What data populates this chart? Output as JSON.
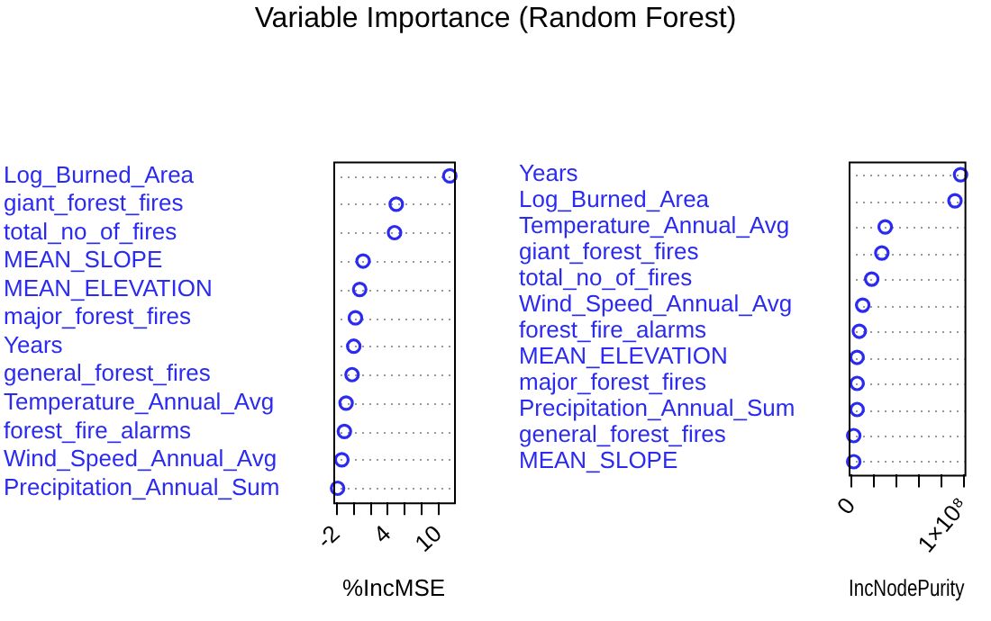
{
  "chart_data": [
    {
      "type": "scatter",
      "title": "Variable Importance (Random Forest)",
      "orientation": "horizontal",
      "xlabel": "%IncMSE",
      "color": "#2a2af0",
      "marker": "circle",
      "grid": "y",
      "legend": false,
      "categories": [
        "Log_Burned_Area",
        "giant_forest_fires",
        "total_no_of_fires",
        "MEAN_SLOPE",
        "MEAN_ELEVATION",
        "major_forest_fires",
        "Years",
        "general_forest_fires",
        "Temperature_Annual_Avg",
        "forest_fire_alarms",
        "Wind_Speed_Annual_Avg",
        "Precipitation_Annual_Sum"
      ],
      "values": [
        11.3,
        5.0,
        4.8,
        1.1,
        0.7,
        0.2,
        0.0,
        -0.2,
        -0.9,
        -1.1,
        -1.4,
        -1.9
      ],
      "xlim": [
        -2.4,
        11.8
      ],
      "xticks": [
        -2,
        {
          "value": 0,
          "label": null
        },
        {
          "value": 2,
          "label": null
        },
        4,
        {
          "value": 6,
          "label": null
        },
        {
          "value": 8,
          "label": null
        },
        10
      ]
    },
    {
      "type": "scatter",
      "orientation": "horizontal",
      "xlabel": "IncNodePurity",
      "color": "#2a2af0",
      "marker": "circle",
      "grid": "y",
      "legend": false,
      "categories": [
        "Years",
        "Log_Burned_Area",
        "Temperature_Annual_Avg",
        "giant_forest_fires",
        "total_no_of_fires",
        "Wind_Speed_Annual_Avg",
        "forest_fire_alarms",
        "MEAN_ELEVATION",
        "major_forest_fires",
        "Precipitation_Annual_Sum",
        "general_forest_fires",
        "MEAN_SLOPE"
      ],
      "values": [
        97000000,
        92000000,
        30000000,
        27000000,
        18000000,
        10000000,
        7000000,
        5000000,
        5000000,
        5000000,
        2000000,
        2000000
      ],
      "xlim": [
        -2500000,
        100500000
      ],
      "xticks": [
        0,
        {
          "value": 20000000,
          "label": null
        },
        {
          "value": 40000000,
          "label": null
        },
        {
          "value": 60000000,
          "label": null
        },
        {
          "value": 80000000,
          "label": null
        },
        {
          "value": 100000000,
          "label": "1×10⁸"
        }
      ]
    }
  ]
}
